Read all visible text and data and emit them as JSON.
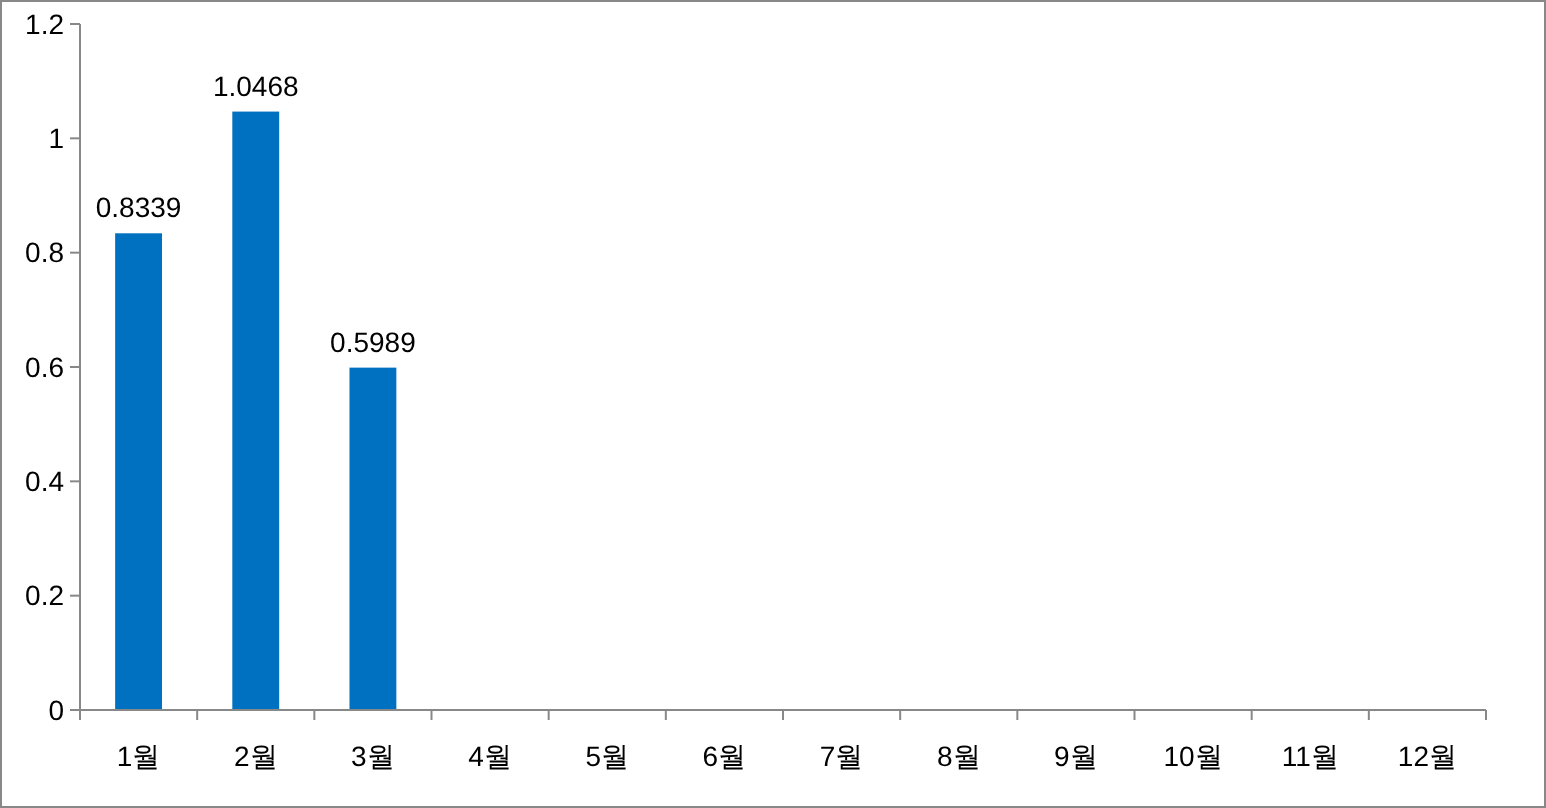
{
  "chart_data": {
    "type": "bar",
    "categories": [
      "1월",
      "2월",
      "3월",
      "4월",
      "5월",
      "6월",
      "7월",
      "8월",
      "9월",
      "10월",
      "11월",
      "12월"
    ],
    "values": [
      0.8339,
      1.0468,
      0.5989,
      null,
      null,
      null,
      null,
      null,
      null,
      null,
      null,
      null
    ],
    "color": "#0070c0",
    "ylim": [
      0,
      1.2
    ],
    "yticks": [
      0,
      0.2,
      0.4,
      0.6,
      0.8,
      1,
      1.2
    ],
    "data_labels": true
  }
}
